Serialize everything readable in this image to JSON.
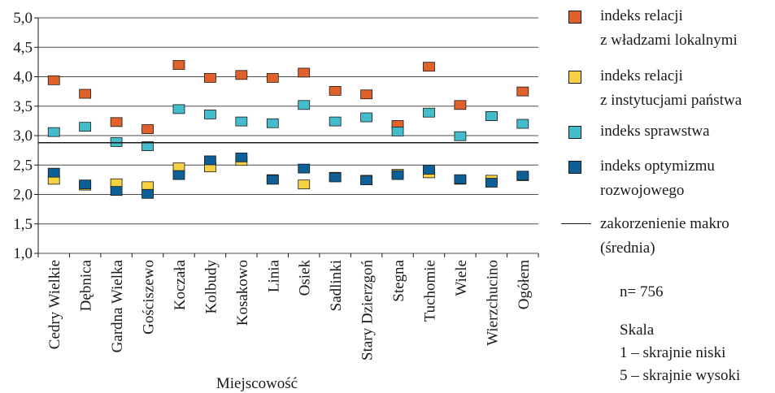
{
  "chart_data": {
    "type": "scatter",
    "xlabel": "Miejscowość",
    "ylim": [
      1.0,
      5.0
    ],
    "yticks": [
      "1,0",
      "1,5",
      "2,0",
      "2,5",
      "3,0",
      "3,5",
      "4,0",
      "4,5",
      "5,0"
    ],
    "categories": [
      "Cedry Wielkie",
      "Dębnica",
      "Gardna Wielka",
      "Gościszewo",
      "Koczała",
      "Kolbudy",
      "Kosakowo",
      "Linia",
      "Osiek",
      "Sadlinki",
      "Stary Dzierzgoń",
      "Stegna",
      "Tuchomie",
      "Wiele",
      "Wierzchucino",
      "Ogółem"
    ],
    "series": [
      {
        "name": "indeks relacji z władzami lokalnymi",
        "color": "#e0622a",
        "values": [
          3.94,
          3.71,
          3.23,
          3.11,
          4.2,
          3.98,
          4.03,
          3.98,
          4.07,
          3.76,
          3.7,
          3.18,
          4.17,
          3.52,
          3.33,
          3.75
        ]
      },
      {
        "name": "indeks relacji z instytucjami państwa",
        "color": "#f5d143",
        "values": [
          2.25,
          2.15,
          2.19,
          2.14,
          2.46,
          2.46,
          2.57,
          2.26,
          2.17,
          2.3,
          2.25,
          2.35,
          2.36,
          2.25,
          2.25,
          2.31
        ]
      },
      {
        "name": "indeks sprawstwa",
        "color": "#45bccb",
        "values": [
          3.06,
          3.15,
          2.89,
          2.82,
          3.45,
          3.36,
          3.24,
          3.21,
          3.52,
          3.24,
          3.31,
          3.07,
          3.39,
          2.99,
          3.33,
          3.2
        ]
      },
      {
        "name": "indeks optymizmu rozwojowego",
        "color": "#0d5f95",
        "values": [
          2.37,
          2.17,
          2.06,
          2.01,
          2.33,
          2.58,
          2.63,
          2.25,
          2.44,
          2.29,
          2.24,
          2.33,
          2.42,
          2.26,
          2.2,
          2.32
        ]
      }
    ],
    "reference_line": {
      "name": "zakorzenienie makro (średnia)",
      "value": 2.88
    }
  },
  "legend": {
    "items": [
      {
        "lines": [
          "indeks relacji",
          "z władzami lokalnymi"
        ],
        "color": "#e0622a",
        "kind": "square"
      },
      {
        "lines": [
          "indeks relacji",
          "z instytucjami państwa"
        ],
        "color": "#f5d143",
        "kind": "square"
      },
      {
        "lines": [
          "indeks sprawstwa"
        ],
        "color": "#45bccb",
        "kind": "square"
      },
      {
        "lines": [
          "indeks optymizmu",
          "rozwojowego"
        ],
        "color": "#0d5f95",
        "kind": "square"
      },
      {
        "lines": [
          "zakorzenienie makro",
          "(średnia)"
        ],
        "kind": "line"
      }
    ]
  },
  "notes": {
    "n": "n= 756",
    "scale_title": "Skala",
    "scale_low": "1 – skrajnie niski",
    "scale_high": "5 – skrajnie wysoki"
  }
}
